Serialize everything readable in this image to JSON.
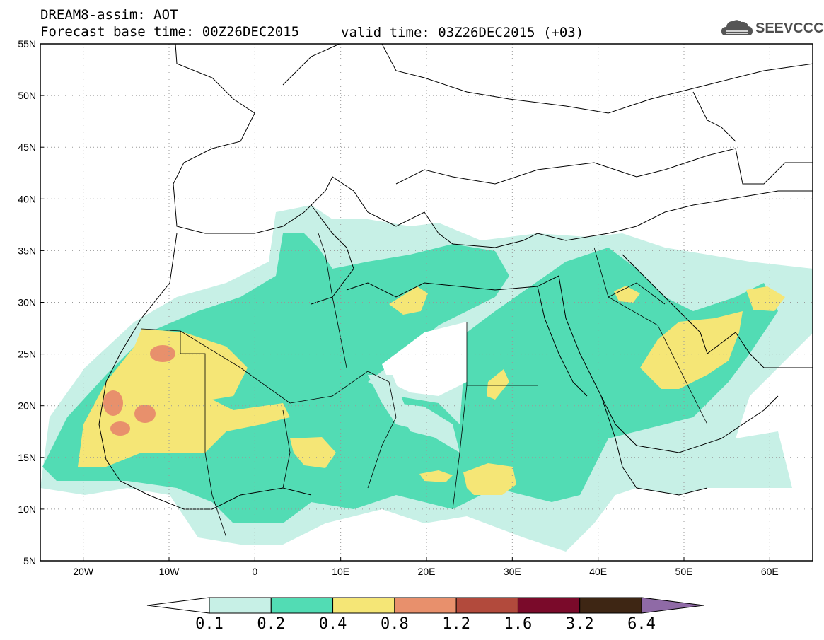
{
  "header": {
    "product": "DREAM8-assim: AOT",
    "base_time": "Forecast base time: 00Z26DEC2015",
    "valid_time": "valid time: 03Z26DEC2015 (+03)"
  },
  "logo": {
    "text": "SEEVCCC",
    "icon": "cloud-icon"
  },
  "map": {
    "lat_labels": [
      "55N",
      "50N",
      "45N",
      "40N",
      "35N",
      "30N",
      "25N",
      "20N",
      "15N",
      "10N",
      "5N"
    ],
    "lon_labels": [
      "20W",
      "10W",
      "0",
      "10E",
      "20E",
      "30E",
      "40E",
      "50E",
      "60E"
    ],
    "lat_range": [
      5,
      55
    ],
    "lon_range": [
      -25,
      65
    ],
    "grid": "dotted"
  },
  "colorbar": {
    "labels": [
      "0.1",
      "0.2",
      "0.4",
      "0.8",
      "1.2",
      "1.6",
      "3.2",
      "6.4"
    ],
    "colors": [
      "#ffffff",
      "#c7f0e6",
      "#52dcb4",
      "#f5e676",
      "#e8906c",
      "#b24a3c",
      "#7a0a2a",
      "#3e2614",
      "#8f6aa6"
    ]
  },
  "legend_colors": {
    "c1": "#c7f0e6",
    "c2": "#52dcb4",
    "c3": "#f5e676",
    "c4": "#e8906c"
  }
}
